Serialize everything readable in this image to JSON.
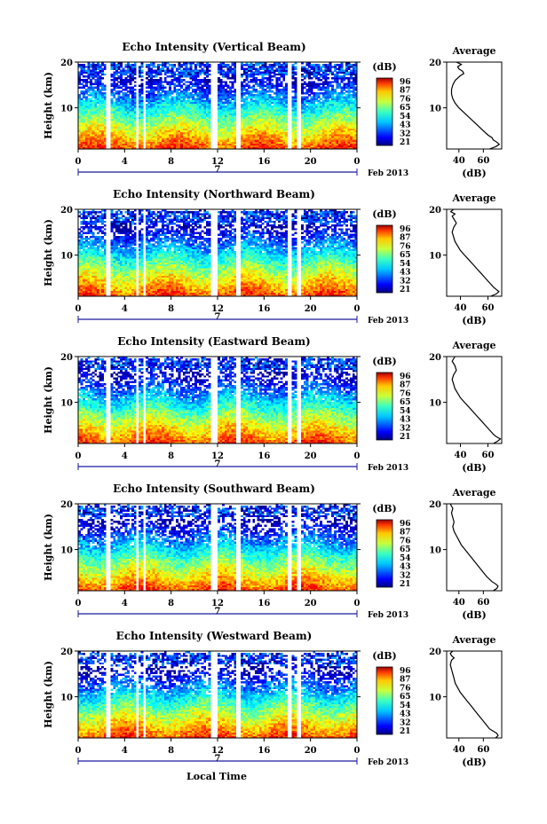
{
  "chart_data": {
    "type": "heatmap",
    "xlabel": "Local Time",
    "date_label": "Feb 2013",
    "day_label": "7",
    "x_ticks": [
      "0",
      "4",
      "8",
      "12",
      "16",
      "20",
      "0"
    ],
    "xlim": [
      0,
      24
    ],
    "ylim": [
      1,
      20
    ],
    "y_ticks": [
      "20",
      "10"
    ],
    "ylabel": "Height (km)",
    "colorbar": {
      "unit": "(dB)",
      "ticks": [
        "96",
        "87",
        "76",
        "65",
        "54",
        "43",
        "32",
        "21"
      ],
      "range": [
        21,
        96
      ],
      "colormap": "jet"
    },
    "avg_title": "Average",
    "avg_xlabel": "(dB)",
    "data_gaps_hours": [
      [
        2.5,
        2.8
      ],
      [
        5.0,
        5.25
      ],
      [
        5.6,
        5.85
      ],
      [
        11.5,
        11.9
      ],
      [
        13.6,
        14.0
      ],
      [
        18.0,
        18.3
      ],
      [
        18.8,
        19.2
      ]
    ],
    "panels": [
      {
        "title": "Echo Intensity (Vertical Beam)",
        "avg_ticks": [
          "40",
          "60"
        ],
        "avg_xlim": [
          30,
          75
        ],
        "avg_profile": {
          "height_km": [
            1,
            1.5,
            2,
            2.5,
            3,
            3.5,
            4,
            5,
            6,
            7,
            8,
            9,
            10,
            11,
            12,
            13,
            14,
            15,
            16,
            17,
            17.5,
            18,
            18.5,
            19,
            19.5,
            20
          ],
          "db": [
            65,
            70,
            73,
            71,
            68,
            67,
            64,
            60,
            56,
            52,
            48,
            44,
            40,
            37,
            35,
            34,
            34,
            35,
            37,
            41,
            44,
            43,
            40,
            39,
            42,
            38
          ]
        }
      },
      {
        "title": "Echo Intensity (Northward Beam)",
        "avg_ticks": [
          "40",
          "60"
        ],
        "avg_xlim": [
          30,
          70
        ],
        "avg_profile": {
          "height_km": [
            1,
            1.5,
            2,
            2.5,
            3,
            4,
            5,
            6,
            7,
            8,
            9,
            10,
            11,
            12,
            13,
            14,
            15,
            16,
            17,
            18,
            18.5,
            19,
            19.5,
            20
          ],
          "db": [
            62,
            66,
            68,
            66,
            64,
            61,
            58,
            55,
            52,
            49,
            46,
            43,
            40,
            38,
            36,
            35,
            34,
            35,
            37,
            35,
            34,
            36,
            33,
            35
          ]
        }
      },
      {
        "title": "Echo Intensity (Eastward Beam)",
        "avg_ticks": [
          "40",
          "60"
        ],
        "avg_xlim": [
          30,
          70
        ],
        "avg_profile": {
          "height_km": [
            1,
            1.5,
            2,
            2.5,
            3,
            4,
            5,
            6,
            7,
            8,
            9,
            10,
            11,
            12,
            13,
            14,
            15,
            16,
            17,
            18,
            19,
            20
          ],
          "db": [
            64,
            67,
            69,
            66,
            64,
            61,
            58,
            55,
            52,
            49,
            46,
            43,
            40,
            38,
            36,
            35,
            34,
            35,
            37,
            36,
            34,
            36
          ]
        }
      },
      {
        "title": "Echo Intensity (Southward Beam)",
        "avg_ticks": [
          "40",
          "60"
        ],
        "avg_xlim": [
          30,
          75
        ],
        "avg_profile": {
          "height_km": [
            1,
            1.5,
            2,
            2.5,
            3,
            4,
            5,
            6,
            7,
            8,
            9,
            10,
            11,
            12,
            13,
            14,
            15,
            16,
            17,
            18,
            19,
            20
          ],
          "db": [
            68,
            71,
            72,
            70,
            67,
            63,
            60,
            57,
            54,
            51,
            48,
            45,
            42,
            40,
            38,
            36,
            35,
            36,
            35,
            34,
            35,
            33
          ]
        }
      },
      {
        "title": "Echo Intensity (Westward Beam)",
        "avg_ticks": [
          "40",
          "60"
        ],
        "avg_xlim": [
          30,
          75
        ],
        "avg_profile": {
          "height_km": [
            1,
            1.5,
            2,
            2.5,
            3,
            4,
            5,
            6,
            7,
            8,
            9,
            10,
            11,
            12,
            13,
            14,
            15,
            16,
            17,
            18,
            18.5,
            19,
            19.5,
            20
          ],
          "db": [
            70,
            72,
            71,
            68,
            65,
            62,
            59,
            56,
            53,
            50,
            47,
            44,
            41,
            39,
            37,
            36,
            35,
            34,
            33,
            34,
            36,
            34,
            33,
            35
          ]
        }
      }
    ]
  }
}
